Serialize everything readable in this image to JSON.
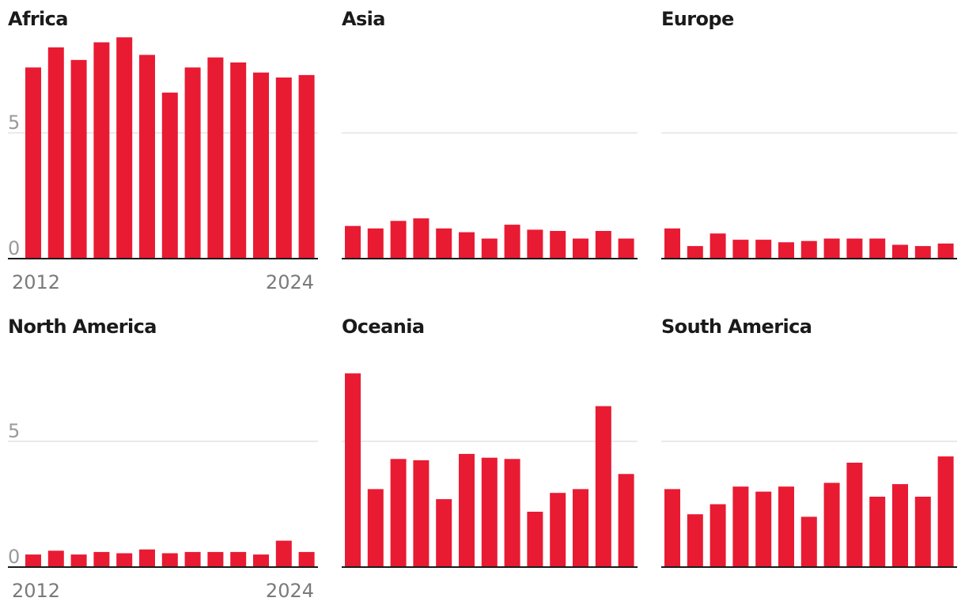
{
  "colors": {
    "bar": "#e81b33",
    "grid": "#dddddd",
    "axis": "#1a1a1a",
    "tick_text": "#9a9a9a",
    "title_text": "#1a1a1a"
  },
  "chart_data": [
    {
      "type": "bar",
      "title": "Africa",
      "categories": [
        "2012",
        "2013",
        "2014",
        "2015",
        "2016",
        "2017",
        "2018",
        "2019",
        "2020",
        "2021",
        "2022",
        "2023",
        "2024"
      ],
      "values": [
        7.6,
        8.4,
        7.9,
        8.6,
        8.8,
        8.1,
        6.6,
        7.6,
        8.0,
        7.8,
        7.4,
        7.2,
        7.3
      ],
      "ylim": [
        0,
        10
      ],
      "yticks": [
        {
          "value": 0,
          "label": "0"
        },
        {
          "value": 5,
          "label": "5"
        }
      ],
      "xtick_labels": {
        "first": "2012",
        "last": "2024"
      }
    },
    {
      "type": "bar",
      "title": "Asia",
      "categories": [
        "2012",
        "2013",
        "2014",
        "2015",
        "2016",
        "2017",
        "2018",
        "2019",
        "2020",
        "2021",
        "2022",
        "2023",
        "2024"
      ],
      "values": [
        1.3,
        1.2,
        1.5,
        1.6,
        1.2,
        1.05,
        0.8,
        1.35,
        1.15,
        1.1,
        0.8,
        1.1,
        0.8
      ],
      "ylim": [
        0,
        10
      ],
      "yticks": [
        {
          "value": 0,
          "label": ""
        },
        {
          "value": 5,
          "label": ""
        }
      ],
      "xtick_labels": {
        "first": "",
        "last": ""
      }
    },
    {
      "type": "bar",
      "title": "Europe",
      "categories": [
        "2012",
        "2013",
        "2014",
        "2015",
        "2016",
        "2017",
        "2018",
        "2019",
        "2020",
        "2021",
        "2022",
        "2023",
        "2024"
      ],
      "values": [
        1.2,
        0.5,
        1.0,
        0.75,
        0.75,
        0.65,
        0.7,
        0.8,
        0.8,
        0.8,
        0.55,
        0.5,
        0.6
      ],
      "ylim": [
        0,
        10
      ],
      "yticks": [
        {
          "value": 0,
          "label": ""
        },
        {
          "value": 5,
          "label": ""
        }
      ],
      "xtick_labels": {
        "first": "",
        "last": ""
      }
    },
    {
      "type": "bar",
      "title": "North America",
      "categories": [
        "2012",
        "2013",
        "2014",
        "2015",
        "2016",
        "2017",
        "2018",
        "2019",
        "2020",
        "2021",
        "2022",
        "2023",
        "2024"
      ],
      "values": [
        0.5,
        0.65,
        0.5,
        0.6,
        0.55,
        0.7,
        0.55,
        0.6,
        0.6,
        0.6,
        0.5,
        1.05,
        0.6
      ],
      "ylim": [
        0,
        10
      ],
      "yticks": [
        {
          "value": 0,
          "label": "0"
        },
        {
          "value": 5,
          "label": "5"
        }
      ],
      "xtick_labels": {
        "first": "2012",
        "last": "2024"
      }
    },
    {
      "type": "bar",
      "title": "Oceania",
      "categories": [
        "2012",
        "2013",
        "2014",
        "2015",
        "2016",
        "2017",
        "2018",
        "2019",
        "2020",
        "2021",
        "2022",
        "2023",
        "2024"
      ],
      "values": [
        7.7,
        3.1,
        4.3,
        4.25,
        2.7,
        4.5,
        4.35,
        4.3,
        2.2,
        2.95,
        3.1,
        6.4,
        3.7
      ],
      "ylim": [
        0,
        10
      ],
      "yticks": [
        {
          "value": 0,
          "label": ""
        },
        {
          "value": 5,
          "label": ""
        }
      ],
      "xtick_labels": {
        "first": "",
        "last": ""
      }
    },
    {
      "type": "bar",
      "title": "South America",
      "categories": [
        "2012",
        "2013",
        "2014",
        "2015",
        "2016",
        "2017",
        "2018",
        "2019",
        "2020",
        "2021",
        "2022",
        "2023",
        "2024"
      ],
      "values": [
        3.1,
        2.1,
        2.5,
        3.2,
        3.0,
        3.2,
        2.0,
        3.35,
        4.15,
        2.8,
        3.3,
        2.8,
        4.4
      ],
      "ylim": [
        0,
        10
      ],
      "yticks": [
        {
          "value": 0,
          "label": ""
        },
        {
          "value": 5,
          "label": ""
        }
      ],
      "xtick_labels": {
        "first": "",
        "last": ""
      }
    }
  ]
}
